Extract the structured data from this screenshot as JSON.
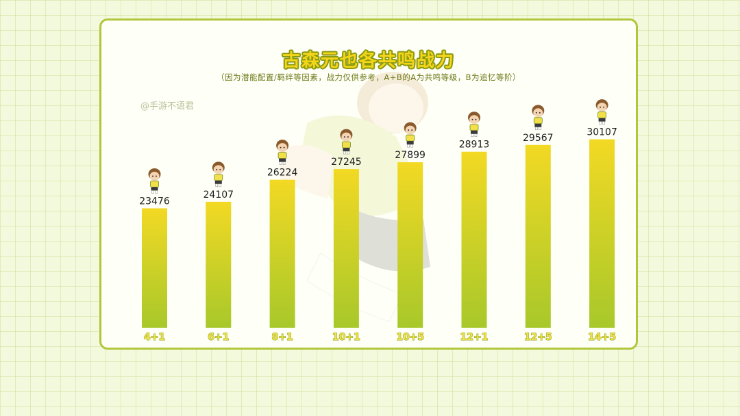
{
  "title": "古森元也各共鸣战力",
  "subtitle": "（因为潜能配置/羁绊等因素，战力仅供参考，A+B的A为共鸣等级，B为追忆等阶）",
  "watermark": "@手游不语君",
  "colors": {
    "bar_top": "#f2d924",
    "bar_bottom": "#a8c82a",
    "frame": "#b2c63c",
    "title_fill": "#f4d51c"
  },
  "chart_data": {
    "type": "bar",
    "title": "古森元也各共鸣战力",
    "categories": [
      "4+1",
      "6+1",
      "8+1",
      "10+1",
      "10+5",
      "12+1",
      "12+5",
      "14+5"
    ],
    "values": [
      23476,
      24107,
      26224,
      27245,
      27899,
      28913,
      29567,
      30107
    ],
    "xlabel": "",
    "ylabel": "",
    "ylim": [
      12000,
      31000
    ],
    "grid": false,
    "legend": "none"
  }
}
